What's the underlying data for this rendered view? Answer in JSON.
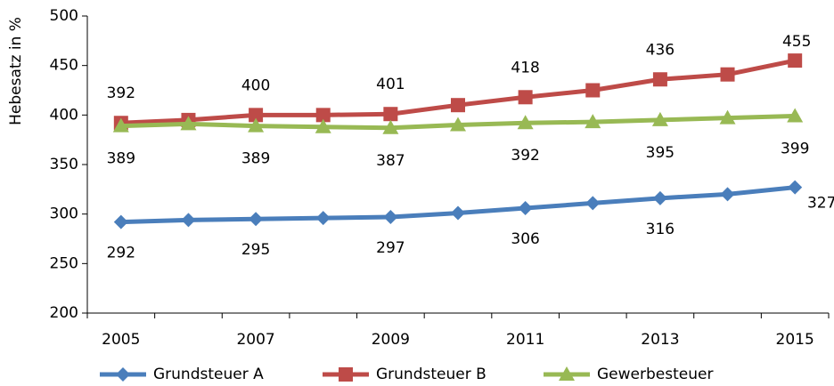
{
  "chart_data": {
    "type": "line",
    "y_label": "Hebesatz in %",
    "categories": [
      "2005",
      null,
      "2007",
      null,
      "2009",
      null,
      "2011",
      null,
      "2013",
      null,
      "2015"
    ],
    "series": [
      {
        "name": "Grundsteuer A",
        "color": "#4a7ebb",
        "marker": "diamond",
        "values": [
          292,
          294,
          295,
          296,
          297,
          301,
          306,
          311,
          316,
          320,
          327
        ],
        "value_labels": [
          "292",
          null,
          "295",
          null,
          "297",
          null,
          "306",
          null,
          "316",
          null,
          "327"
        ]
      },
      {
        "name": "Grundsteuer B",
        "color": "#be4b48",
        "marker": "square",
        "values": [
          392,
          395,
          400,
          400,
          401,
          410,
          418,
          425,
          436,
          441,
          455
        ],
        "value_labels": [
          "392",
          null,
          "400",
          null,
          "401",
          null,
          "418",
          null,
          "436",
          null,
          "455"
        ]
      },
      {
        "name": "Gewerbesteuer",
        "color": "#98b954",
        "marker": "triangle",
        "values": [
          389,
          391,
          389,
          388,
          387,
          390,
          392,
          393,
          395,
          397,
          399
        ],
        "value_labels": [
          "389",
          null,
          "389",
          null,
          "387",
          null,
          "392",
          null,
          "395",
          null,
          "399"
        ]
      }
    ],
    "ylim": [
      200,
      500
    ],
    "yticks": [
      200,
      250,
      300,
      350,
      400,
      450,
      500
    ],
    "grid": false,
    "legend": "bottom"
  }
}
